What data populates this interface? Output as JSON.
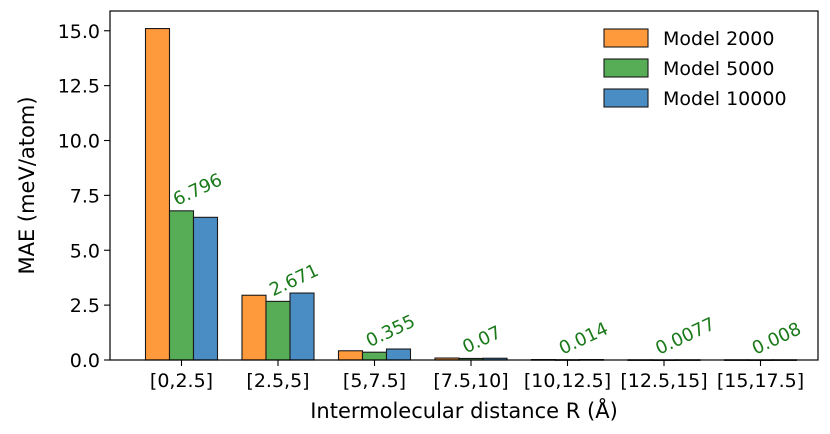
{
  "chart_data": {
    "type": "bar",
    "title": "",
    "xlabel": "Intermolecular distance R (Å)",
    "ylabel": "MAE (meV/atom)",
    "ylim": [
      0,
      15.9
    ],
    "yticks": [
      "0.0",
      "2.5",
      "5.0",
      "7.5",
      "10.0",
      "12.5",
      "15.0"
    ],
    "categories": [
      "[0,2.5]",
      "[2.5,5]",
      "[5,7.5]",
      "[7.5,10]",
      "[10,12.5]",
      "[12.5,15]",
      "[15,17.5]"
    ],
    "series": [
      {
        "name": "Model 2000",
        "color": "#ff9a3c",
        "values": [
          15.1,
          2.95,
          0.42,
          0.09,
          0.02,
          0.01,
          0.01
        ]
      },
      {
        "name": "Model 5000",
        "color": "#56ad56",
        "values": [
          6.796,
          2.671,
          0.355,
          0.07,
          0.014,
          0.0077,
          0.008
        ]
      },
      {
        "name": "Model 10000",
        "color": "#4a8dc4",
        "values": [
          6.5,
          3.05,
          0.5,
          0.08,
          0.02,
          0.01,
          0.01
        ]
      }
    ],
    "data_labels": [
      "6.796",
      "2.671",
      "0.355",
      "0.07",
      "0.014",
      "0.0077",
      "0.008"
    ],
    "data_label_color": "#1a7a1a",
    "grid": false,
    "legend": "top-right"
  }
}
